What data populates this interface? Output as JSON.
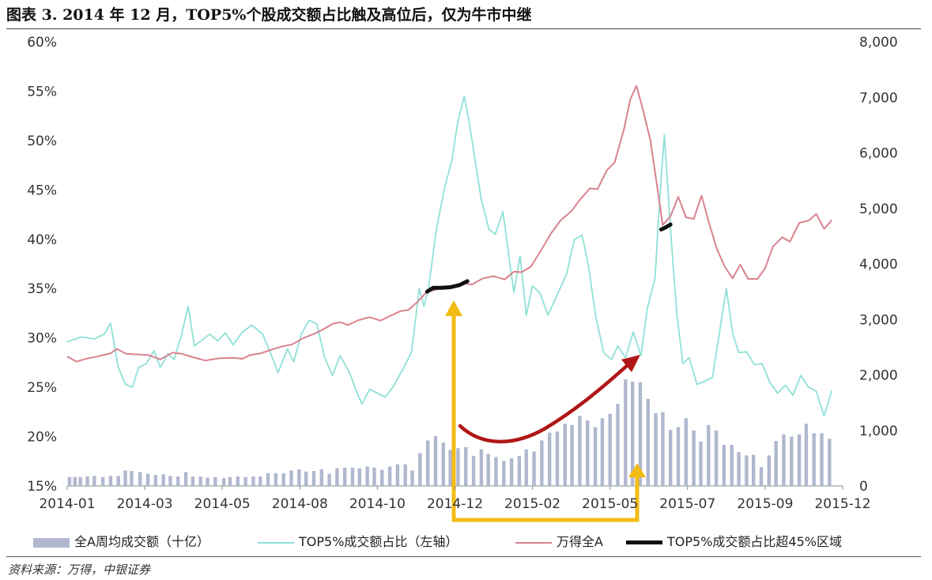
{
  "title": "图表 3. 2014 年 12 月，TOP5%个股成交额占比触及高位后，仅为牛市中继",
  "source": "资料来源：万得，中银证券",
  "colors": {
    "bars": "#b0b7cf",
    "top5": "#8fe0d6",
    "windA": "#d9828e",
    "highlight": "#111111",
    "yellow_arrow": "#f2bc14",
    "red_arrow": "#b01616"
  },
  "chart_data": {
    "type": "bar+line",
    "x_ticks": [
      "2014-01",
      "2014-03",
      "2014-05",
      "2014-08",
      "2014-10",
      "2014-12",
      "2015-02",
      "2015-05",
      "2015-07",
      "2015-09",
      "2015-12"
    ],
    "left_axis": {
      "ticks": [
        "60%",
        "55%",
        "50%",
        "45%",
        "40%",
        "35%",
        "30%",
        "25%",
        "20%",
        "15%"
      ],
      "range": [
        15,
        60
      ]
    },
    "right_axis": {
      "ticks": [
        "8,000",
        "7,000",
        "6,000",
        "5,000",
        "4,000",
        "3,000",
        "2,000",
        "1,000",
        "0"
      ],
      "range": [
        0,
        8000
      ]
    },
    "legend": [
      {
        "name": "全A周均成交额（十亿）",
        "type": "bar"
      },
      {
        "name": "TOP5%成交额占比（左轴）",
        "type": "line-top5"
      },
      {
        "name": "万得全A",
        "type": "line-winda"
      },
      {
        "name": "TOP5%成交额占比超45%区域",
        "type": "line-highlight"
      }
    ],
    "series_bars_right": [
      {
        "t": 0.03,
        "v": 160
      },
      {
        "t": 0.1,
        "v": 160
      },
      {
        "t": 0.17,
        "v": 160
      },
      {
        "t": 0.26,
        "v": 170
      },
      {
        "t": 0.35,
        "v": 180
      },
      {
        "t": 0.46,
        "v": 160
      },
      {
        "t": 0.56,
        "v": 180
      },
      {
        "t": 0.66,
        "v": 180
      },
      {
        "t": 0.75,
        "v": 280
      },
      {
        "t": 0.83,
        "v": 270
      },
      {
        "t": 0.94,
        "v": 250
      },
      {
        "t": 1.04,
        "v": 220
      },
      {
        "t": 1.14,
        "v": 200
      },
      {
        "t": 1.24,
        "v": 210
      },
      {
        "t": 1.33,
        "v": 180
      },
      {
        "t": 1.43,
        "v": 170
      },
      {
        "t": 1.53,
        "v": 250
      },
      {
        "t": 1.62,
        "v": 170
      },
      {
        "t": 1.72,
        "v": 170
      },
      {
        "t": 1.81,
        "v": 150
      },
      {
        "t": 1.91,
        "v": 160
      },
      {
        "t": 2.02,
        "v": 140
      },
      {
        "t": 2.1,
        "v": 160
      },
      {
        "t": 2.2,
        "v": 170
      },
      {
        "t": 2.3,
        "v": 160
      },
      {
        "t": 2.4,
        "v": 170
      },
      {
        "t": 2.49,
        "v": 170
      },
      {
        "t": 2.59,
        "v": 230
      },
      {
        "t": 2.69,
        "v": 230
      },
      {
        "t": 2.79,
        "v": 230
      },
      {
        "t": 2.89,
        "v": 280
      },
      {
        "t": 2.99,
        "v": 300
      },
      {
        "t": 3.08,
        "v": 260
      },
      {
        "t": 3.18,
        "v": 270
      },
      {
        "t": 3.28,
        "v": 300
      },
      {
        "t": 3.38,
        "v": 220
      },
      {
        "t": 3.48,
        "v": 320
      },
      {
        "t": 3.58,
        "v": 330
      },
      {
        "t": 3.68,
        "v": 330
      },
      {
        "t": 3.77,
        "v": 320
      },
      {
        "t": 3.87,
        "v": 350
      },
      {
        "t": 3.96,
        "v": 330
      },
      {
        "t": 4.06,
        "v": 290
      },
      {
        "t": 4.16,
        "v": 350
      },
      {
        "t": 4.26,
        "v": 390
      },
      {
        "t": 4.36,
        "v": 390
      },
      {
        "t": 4.45,
        "v": 280
      },
      {
        "t": 4.55,
        "v": 590
      },
      {
        "t": 4.65,
        "v": 820
      },
      {
        "t": 4.75,
        "v": 900
      },
      {
        "t": 4.85,
        "v": 780
      },
      {
        "t": 4.94,
        "v": 650
      },
      {
        "t": 5.04,
        "v": 680
      },
      {
        "t": 5.14,
        "v": 700
      },
      {
        "t": 5.24,
        "v": 540
      },
      {
        "t": 5.34,
        "v": 660
      },
      {
        "t": 5.43,
        "v": 580
      },
      {
        "t": 5.53,
        "v": 520
      },
      {
        "t": 5.63,
        "v": 450
      },
      {
        "t": 5.73,
        "v": 500
      },
      {
        "t": 5.83,
        "v": 540
      },
      {
        "t": 5.92,
        "v": 660
      },
      {
        "t": 6.02,
        "v": 620
      },
      {
        "t": 6.12,
        "v": 820
      },
      {
        "t": 6.22,
        "v": 960
      },
      {
        "t": 6.32,
        "v": 980
      },
      {
        "t": 6.42,
        "v": 1120
      },
      {
        "t": 6.51,
        "v": 1100
      },
      {
        "t": 6.61,
        "v": 1260
      },
      {
        "t": 6.71,
        "v": 1180
      },
      {
        "t": 6.81,
        "v": 1060
      },
      {
        "t": 6.9,
        "v": 1220
      },
      {
        "t": 7.0,
        "v": 1300
      },
      {
        "t": 7.1,
        "v": 1480
      },
      {
        "t": 7.2,
        "v": 1920
      },
      {
        "t": 7.29,
        "v": 1880
      },
      {
        "t": 7.39,
        "v": 1870
      },
      {
        "t": 7.49,
        "v": 1570
      },
      {
        "t": 7.59,
        "v": 1310
      },
      {
        "t": 7.68,
        "v": 1330
      },
      {
        "t": 7.78,
        "v": 1010
      },
      {
        "t": 7.88,
        "v": 1060
      },
      {
        "t": 7.98,
        "v": 1220
      },
      {
        "t": 8.08,
        "v": 1000
      },
      {
        "t": 8.17,
        "v": 800
      },
      {
        "t": 8.27,
        "v": 1100
      },
      {
        "t": 8.37,
        "v": 1000
      },
      {
        "t": 8.47,
        "v": 740
      },
      {
        "t": 8.57,
        "v": 740
      },
      {
        "t": 8.66,
        "v": 610
      },
      {
        "t": 8.76,
        "v": 550
      },
      {
        "t": 8.85,
        "v": 560
      },
      {
        "t": 8.95,
        "v": 340
      },
      {
        "t": 9.05,
        "v": 550
      },
      {
        "t": 9.14,
        "v": 810
      },
      {
        "t": 9.24,
        "v": 930
      },
      {
        "t": 9.34,
        "v": 890
      },
      {
        "t": 9.44,
        "v": 930
      },
      {
        "t": 9.53,
        "v": 1120
      },
      {
        "t": 9.63,
        "v": 950
      },
      {
        "t": 9.73,
        "v": 950
      },
      {
        "t": 9.83,
        "v": 850
      }
    ],
    "series_top5_left": [
      [
        0.0,
        29.6
      ],
      [
        0.18,
        30.1
      ],
      [
        0.35,
        29.9
      ],
      [
        0.48,
        30.4
      ],
      [
        0.56,
        31.5
      ],
      [
        0.66,
        27.0
      ],
      [
        0.75,
        25.3
      ],
      [
        0.84,
        25.0
      ],
      [
        0.92,
        27.0
      ],
      [
        1.02,
        27.4
      ],
      [
        1.12,
        28.7
      ],
      [
        1.2,
        27.0
      ],
      [
        1.3,
        28.4
      ],
      [
        1.38,
        27.8
      ],
      [
        1.48,
        30.5
      ],
      [
        1.56,
        33.2
      ],
      [
        1.64,
        29.2
      ],
      [
        1.74,
        29.8
      ],
      [
        1.84,
        30.4
      ],
      [
        1.94,
        29.7
      ],
      [
        2.04,
        30.5
      ],
      [
        2.14,
        29.3
      ],
      [
        2.26,
        30.6
      ],
      [
        2.38,
        31.3
      ],
      [
        2.52,
        30.4
      ],
      [
        2.62,
        28.5
      ],
      [
        2.72,
        26.5
      ],
      [
        2.84,
        28.9
      ],
      [
        2.92,
        27.6
      ],
      [
        3.02,
        30.4
      ],
      [
        3.12,
        31.8
      ],
      [
        3.22,
        31.4
      ],
      [
        3.32,
        28.0
      ],
      [
        3.42,
        26.2
      ],
      [
        3.52,
        28.2
      ],
      [
        3.64,
        26.5
      ],
      [
        3.72,
        24.8
      ],
      [
        3.8,
        23.3
      ],
      [
        3.9,
        24.8
      ],
      [
        4.0,
        24.4
      ],
      [
        4.1,
        24.0
      ],
      [
        4.2,
        25.0
      ],
      [
        4.34,
        27.0
      ],
      [
        4.44,
        28.6
      ],
      [
        4.54,
        35.0
      ],
      [
        4.6,
        33.2
      ],
      [
        4.66,
        35.0
      ],
      [
        4.76,
        41.0
      ],
      [
        4.86,
        45.0
      ],
      [
        4.96,
        48.0
      ],
      [
        5.04,
        52.0
      ],
      [
        5.12,
        54.5
      ],
      [
        5.18,
        52.0
      ],
      [
        5.26,
        48.0
      ],
      [
        5.34,
        44.0
      ],
      [
        5.44,
        41.0
      ],
      [
        5.52,
        40.5
      ],
      [
        5.62,
        42.8
      ],
      [
        5.7,
        38.0
      ],
      [
        5.76,
        34.6
      ],
      [
        5.84,
        38.3
      ],
      [
        5.92,
        32.3
      ],
      [
        6.0,
        35.3
      ],
      [
        6.1,
        34.5
      ],
      [
        6.2,
        32.3
      ],
      [
        6.32,
        34.4
      ],
      [
        6.44,
        36.5
      ],
      [
        6.54,
        40.0
      ],
      [
        6.64,
        40.4
      ],
      [
        6.72,
        37.4
      ],
      [
        6.82,
        32.0
      ],
      [
        6.92,
        28.5
      ],
      [
        7.02,
        27.8
      ],
      [
        7.1,
        29.2
      ],
      [
        7.2,
        28.0
      ],
      [
        7.3,
        30.6
      ],
      [
        7.4,
        28.2
      ],
      [
        7.48,
        33.0
      ],
      [
        7.58,
        36.0
      ],
      [
        7.64,
        44.0
      ],
      [
        7.7,
        50.6
      ],
      [
        7.78,
        41.0
      ],
      [
        7.86,
        32.5
      ],
      [
        7.94,
        27.4
      ],
      [
        8.02,
        28.0
      ],
      [
        8.12,
        25.3
      ],
      [
        8.22,
        25.6
      ],
      [
        8.32,
        26.0
      ],
      [
        8.42,
        31.0
      ],
      [
        8.5,
        35.0
      ],
      [
        8.58,
        30.5
      ],
      [
        8.66,
        28.5
      ],
      [
        8.76,
        28.6
      ],
      [
        8.86,
        27.3
      ],
      [
        8.96,
        27.4
      ],
      [
        9.06,
        25.5
      ],
      [
        9.16,
        24.4
      ],
      [
        9.26,
        25.2
      ],
      [
        9.36,
        24.2
      ],
      [
        9.46,
        26.2
      ],
      [
        9.56,
        25.0
      ],
      [
        9.66,
        24.6
      ],
      [
        9.76,
        22.1
      ],
      [
        9.86,
        24.7
      ]
    ],
    "series_winda_right": [
      [
        0.0,
        2330
      ],
      [
        0.12,
        2240
      ],
      [
        0.24,
        2290
      ],
      [
        0.38,
        2330
      ],
      [
        0.56,
        2390
      ],
      [
        0.64,
        2470
      ],
      [
        0.76,
        2380
      ],
      [
        0.9,
        2370
      ],
      [
        1.04,
        2360
      ],
      [
        1.2,
        2280
      ],
      [
        1.36,
        2400
      ],
      [
        1.48,
        2380
      ],
      [
        1.62,
        2320
      ],
      [
        1.78,
        2260
      ],
      [
        1.96,
        2300
      ],
      [
        2.14,
        2310
      ],
      [
        2.26,
        2290
      ],
      [
        2.36,
        2360
      ],
      [
        2.5,
        2390
      ],
      [
        2.62,
        2450
      ],
      [
        2.76,
        2510
      ],
      [
        2.9,
        2550
      ],
      [
        3.04,
        2660
      ],
      [
        3.2,
        2750
      ],
      [
        3.3,
        2820
      ],
      [
        3.42,
        2920
      ],
      [
        3.52,
        2950
      ],
      [
        3.62,
        2900
      ],
      [
        3.76,
        2990
      ],
      [
        3.9,
        3040
      ],
      [
        4.04,
        2980
      ],
      [
        4.16,
        3060
      ],
      [
        4.3,
        3150
      ],
      [
        4.4,
        3170
      ],
      [
        4.52,
        3320
      ],
      [
        4.64,
        3500
      ],
      [
        4.74,
        3530
      ],
      [
        4.8,
        3560
      ],
      [
        4.94,
        3580
      ],
      [
        5.1,
        3650
      ],
      [
        5.22,
        3630
      ],
      [
        5.36,
        3740
      ],
      [
        5.5,
        3780
      ],
      [
        5.64,
        3720
      ],
      [
        5.76,
        3860
      ],
      [
        5.86,
        3850
      ],
      [
        5.98,
        3950
      ],
      [
        6.1,
        4220
      ],
      [
        6.24,
        4550
      ],
      [
        6.36,
        4780
      ],
      [
        6.5,
        4950
      ],
      [
        6.62,
        5170
      ],
      [
        6.74,
        5360
      ],
      [
        6.84,
        5350
      ],
      [
        6.96,
        5690
      ],
      [
        7.06,
        5830
      ],
      [
        7.18,
        6430
      ],
      [
        7.26,
        6960
      ],
      [
        7.34,
        7210
      ],
      [
        7.42,
        6800
      ],
      [
        7.52,
        6230
      ],
      [
        7.6,
        5460
      ],
      [
        7.68,
        4700
      ],
      [
        7.78,
        4860
      ],
      [
        7.88,
        5210
      ],
      [
        7.98,
        4840
      ],
      [
        8.08,
        4810
      ],
      [
        8.18,
        5230
      ],
      [
        8.28,
        4720
      ],
      [
        8.38,
        4260
      ],
      [
        8.48,
        3950
      ],
      [
        8.58,
        3740
      ],
      [
        8.68,
        3990
      ],
      [
        8.78,
        3730
      ],
      [
        8.9,
        3730
      ],
      [
        9.0,
        3920
      ],
      [
        9.1,
        4310
      ],
      [
        9.22,
        4480
      ],
      [
        9.32,
        4400
      ],
      [
        9.44,
        4740
      ],
      [
        9.56,
        4780
      ],
      [
        9.66,
        4900
      ],
      [
        9.76,
        4630
      ],
      [
        9.86,
        4790
      ]
    ],
    "series_highlight_right": [
      [
        [
          4.64,
          3500
        ],
        [
          4.72,
          3570
        ],
        [
          4.82,
          3570
        ],
        [
          4.94,
          3580
        ],
        [
          5.06,
          3620
        ],
        [
          5.16,
          3690
        ]
      ],
      [
        [
          7.66,
          4620
        ],
        [
          7.72,
          4660
        ],
        [
          7.78,
          4710
        ]
      ]
    ]
  }
}
